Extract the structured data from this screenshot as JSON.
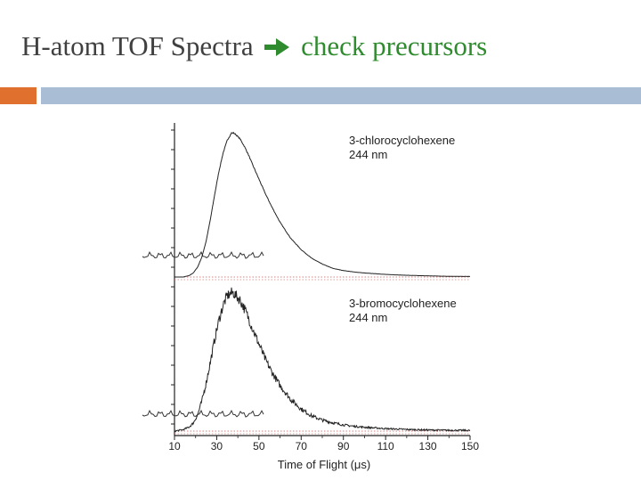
{
  "title": {
    "part1": "H-atom TOF Spectra",
    "arrow_icon": "right-arrow-icon",
    "part2": "check precursors",
    "accent_color": "#2e8b2e",
    "text_color": "#404040"
  },
  "decor": {
    "bar_left_color": "#e0702e",
    "bar_right_color": "#a9bdd4"
  },
  "chart_data": {
    "type": "line",
    "xlabel": "Time of Flight (μs)",
    "xlim": [
      10,
      150
    ],
    "xticks": [
      "10",
      "30",
      "50",
      "70",
      "90",
      "110",
      "130",
      "150"
    ],
    "grid": false,
    "panels": [
      {
        "label_line1": "3-chlorocyclohexene",
        "label_line2": "244 nm",
        "ylim": [
          0,
          1.07
        ],
        "noise": 0.004,
        "x": [
          10,
          14,
          17,
          19,
          21,
          23,
          25,
          27,
          29,
          31,
          33,
          35,
          37,
          38,
          39,
          41,
          43,
          45,
          47,
          50,
          53,
          56,
          60,
          65,
          70,
          75,
          80,
          85,
          90,
          95,
          100,
          110,
          120,
          130,
          140,
          150
        ],
        "y": [
          0,
          0,
          0.01,
          0.03,
          0.07,
          0.14,
          0.25,
          0.4,
          0.57,
          0.73,
          0.86,
          0.95,
          1.0,
          1.0,
          0.99,
          0.96,
          0.91,
          0.85,
          0.78,
          0.68,
          0.58,
          0.49,
          0.38,
          0.27,
          0.19,
          0.13,
          0.09,
          0.06,
          0.045,
          0.035,
          0.028,
          0.018,
          0.012,
          0.008,
          0.005,
          0.004
        ]
      },
      {
        "label_line1": "3-bromocyclohexene",
        "label_line2": "244 nm",
        "ylim": [
          0,
          1.07
        ],
        "noise": 0.04,
        "x": [
          10,
          14,
          17,
          19,
          21,
          23,
          25,
          27,
          29,
          31,
          33,
          35,
          37,
          38,
          39,
          41,
          43,
          45,
          47,
          50,
          53,
          56,
          60,
          65,
          70,
          75,
          80,
          85,
          90,
          95,
          100,
          110,
          120,
          130,
          140,
          150
        ],
        "y": [
          0,
          0.01,
          0.03,
          0.06,
          0.12,
          0.22,
          0.35,
          0.5,
          0.66,
          0.8,
          0.91,
          0.98,
          1.0,
          1.0,
          0.98,
          0.95,
          0.89,
          0.82,
          0.74,
          0.63,
          0.52,
          0.43,
          0.33,
          0.23,
          0.16,
          0.11,
          0.08,
          0.06,
          0.045,
          0.035,
          0.028,
          0.018,
          0.012,
          0.008,
          0.006,
          0.005
        ]
      }
    ]
  }
}
